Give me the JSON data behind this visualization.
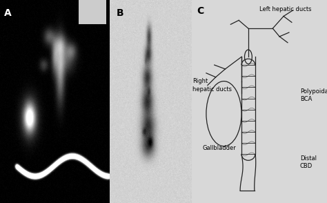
{
  "panel_labels": [
    "A",
    "B",
    "C"
  ],
  "background_color": "#d8d8d8",
  "panel_bg_A": "#111111",
  "panel_bg_B": "#e0e0e0",
  "panel_bg_C": "#e8e8e8",
  "label_fontsize": 10,
  "annotation_fontsize": 6.0,
  "fig_width": 4.74,
  "fig_height": 2.94,
  "dpi": 100,
  "color": "#222222"
}
